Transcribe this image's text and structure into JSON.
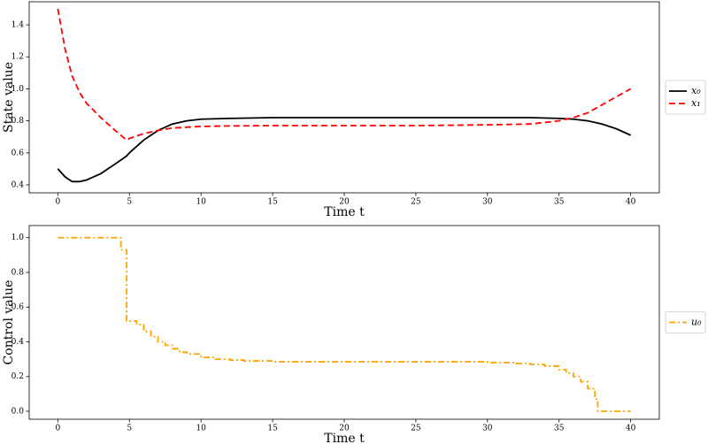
{
  "chart_data": [
    {
      "type": "line",
      "xlabel": "Time t",
      "ylabel": "State value",
      "x": [
        0,
        0.5,
        1,
        1.5,
        2,
        3,
        4,
        4.8,
        5,
        6,
        7,
        8,
        9,
        10,
        12,
        15,
        20,
        25,
        30,
        33,
        35,
        36,
        37,
        38,
        39,
        40
      ],
      "series": [
        {
          "name": "x₀",
          "color": "#000000",
          "dash": "solid",
          "values": [
            0.5,
            0.45,
            0.42,
            0.42,
            0.43,
            0.47,
            0.53,
            0.58,
            0.6,
            0.68,
            0.74,
            0.78,
            0.8,
            0.81,
            0.815,
            0.82,
            0.82,
            0.82,
            0.82,
            0.82,
            0.815,
            0.81,
            0.8,
            0.78,
            0.75,
            0.71
          ]
        },
        {
          "name": "x₁",
          "color": "#ff0000",
          "dash": "dashed",
          "values": [
            1.5,
            1.25,
            1.08,
            0.98,
            0.91,
            0.82,
            0.74,
            0.68,
            0.69,
            0.72,
            0.74,
            0.755,
            0.76,
            0.765,
            0.768,
            0.77,
            0.77,
            0.77,
            0.775,
            0.78,
            0.8,
            0.82,
            0.85,
            0.9,
            0.95,
            1.0
          ]
        }
      ],
      "xlim": [
        -2,
        42
      ],
      "ylim": [
        0.35,
        1.544
      ],
      "xticks": [
        0,
        5,
        10,
        15,
        20,
        25,
        30,
        35,
        40
      ],
      "yticks": [
        0.4,
        0.6,
        0.8,
        {
          "value": 1,
          "label": "1.0"
        },
        1.2,
        1.4
      ],
      "legend": "outside-right"
    },
    {
      "type": "step",
      "xlabel": "Time t",
      "ylabel": "Control value",
      "x": [
        0,
        4.4,
        4.8,
        5.5,
        6,
        6.5,
        7,
        7.5,
        8,
        8.5,
        9,
        10,
        11,
        12,
        13,
        15,
        20,
        25,
        30,
        32,
        33,
        34,
        35,
        35.5,
        36,
        36.5,
        37,
        37.5,
        37.7,
        40
      ],
      "series": [
        {
          "name": "u₀",
          "color": "#ffa500",
          "dash": "dashdot",
          "values": [
            1.0,
            0.93,
            0.52,
            0.5,
            0.46,
            0.43,
            0.4,
            0.38,
            0.36,
            0.34,
            0.33,
            0.31,
            0.3,
            0.295,
            0.29,
            0.285,
            0.285,
            0.285,
            0.28,
            0.275,
            0.27,
            0.26,
            0.24,
            0.22,
            0.2,
            0.17,
            0.13,
            0.07,
            0.0,
            0.0
          ]
        }
      ],
      "xlim": [
        -2,
        42
      ],
      "ylim": [
        -0.046,
        1.07
      ],
      "xticks": [
        0,
        5,
        10,
        15,
        20,
        25,
        30,
        35,
        40
      ],
      "yticks": [
        {
          "value": 0,
          "label": "0.0"
        },
        0.2,
        0.4,
        0.6,
        0.8,
        {
          "value": 1,
          "label": "1.0"
        }
      ],
      "legend": "outside-right"
    }
  ]
}
